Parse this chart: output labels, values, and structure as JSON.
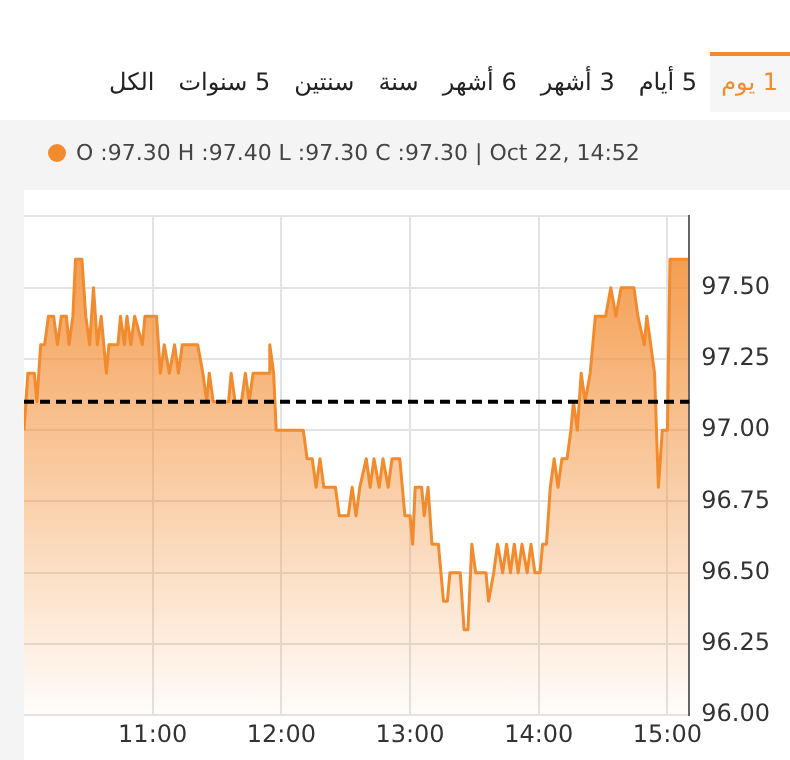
{
  "chart_data": {
    "type": "area",
    "annotations": [
      "1 يوم",
      "5 أيام",
      "3 أشهر",
      "6 أشهر",
      "سنة",
      "سنتين",
      "5 سنوات",
      "الكل",
      "O :97.30 H :97.40 L :97.30 C :97.30 | Oct 22, 14:52"
    ],
    "color": "#f28a2e",
    "marker": "none",
    "grid": true,
    "xlim": [
      10,
      15.17
    ],
    "ylim": [
      96,
      97.75
    ],
    "xticks": [
      {
        "value": 11,
        "label": "11:00"
      },
      {
        "value": 12,
        "label": "12:00"
      },
      {
        "value": 13,
        "label": "13:00"
      },
      {
        "value": 14,
        "label": "14:00"
      },
      {
        "value": 15,
        "label": "15:00"
      }
    ],
    "yticks": [
      {
        "value": 96,
        "label": "96.00"
      },
      {
        "value": 96.25,
        "label": "96.25"
      },
      {
        "value": 96.5,
        "label": "96.50"
      },
      {
        "value": 96.75,
        "label": "96.75"
      },
      {
        "value": 97,
        "label": "97.00"
      },
      {
        "value": 97.25,
        "label": "97.25"
      },
      {
        "value": 97.5,
        "label": "97.50"
      },
      {
        "value": 97.75,
        "label": null
      }
    ],
    "ref_lines": [
      {
        "axis": "y",
        "value": 97.1,
        "color": "#000000",
        "line_style": "dashed"
      }
    ],
    "x": [
      10.0,
      10.03,
      10.08,
      10.1,
      10.13,
      10.16,
      10.19,
      10.23,
      10.26,
      10.29,
      10.33,
      10.35,
      10.38,
      10.4,
      10.45,
      10.48,
      10.51,
      10.54,
      10.57,
      10.6,
      10.64,
      10.66,
      10.73,
      10.75,
      10.78,
      10.8,
      10.83,
      10.86,
      10.92,
      10.94,
      11.03,
      11.06,
      11.09,
      11.13,
      11.17,
      11.2,
      11.23,
      11.35,
      11.39,
      11.42,
      11.44,
      11.47,
      11.59,
      11.61,
      11.64,
      11.69,
      11.72,
      11.75,
      11.78,
      11.9,
      11.91,
      11.94,
      11.96,
      12.17,
      12.2,
      12.24,
      12.27,
      12.3,
      12.33,
      12.42,
      12.45,
      12.52,
      12.55,
      12.58,
      12.61,
      12.66,
      12.69,
      12.72,
      12.76,
      12.79,
      12.83,
      12.86,
      12.92,
      12.96,
      13.0,
      13.02,
      13.04,
      13.09,
      13.11,
      13.14,
      13.17,
      13.22,
      13.26,
      13.29,
      13.31,
      13.39,
      13.42,
      13.45,
      13.48,
      13.51,
      13.59,
      13.61,
      13.65,
      13.68,
      13.72,
      13.75,
      13.78,
      13.81,
      13.84,
      13.87,
      13.91,
      13.94,
      13.97,
      14.01,
      14.03,
      14.06,
      14.09,
      14.12,
      14.15,
      14.18,
      14.22,
      14.25,
      14.27,
      14.3,
      14.33,
      14.36,
      14.4,
      14.44,
      14.52,
      14.56,
      14.6,
      14.64,
      14.74,
      14.77,
      14.82,
      14.84,
      14.87,
      14.9,
      14.93,
      14.96,
      15.0,
      15.02,
      15.16
    ],
    "values": [
      97.0,
      97.2,
      97.2,
      97.1,
      97.3,
      97.3,
      97.4,
      97.4,
      97.3,
      97.4,
      97.4,
      97.3,
      97.4,
      97.6,
      97.6,
      97.4,
      97.3,
      97.5,
      97.3,
      97.4,
      97.2,
      97.3,
      97.3,
      97.4,
      97.3,
      97.4,
      97.3,
      97.4,
      97.3,
      97.4,
      97.4,
      97.2,
      97.3,
      97.2,
      97.3,
      97.2,
      97.3,
      97.3,
      97.2,
      97.1,
      97.2,
      97.1,
      97.1,
      97.2,
      97.1,
      97.1,
      97.2,
      97.1,
      97.2,
      97.2,
      97.3,
      97.2,
      97.0,
      97.0,
      96.9,
      96.9,
      96.8,
      96.9,
      96.8,
      96.8,
      96.7,
      96.7,
      96.8,
      96.7,
      96.8,
      96.9,
      96.8,
      96.9,
      96.8,
      96.9,
      96.8,
      96.9,
      96.9,
      96.7,
      96.7,
      96.6,
      96.8,
      96.8,
      96.7,
      96.8,
      96.6,
      96.6,
      96.4,
      96.4,
      96.5,
      96.5,
      96.3,
      96.3,
      96.6,
      96.5,
      96.5,
      96.4,
      96.5,
      96.6,
      96.5,
      96.6,
      96.5,
      96.6,
      96.5,
      96.6,
      96.5,
      96.6,
      96.5,
      96.5,
      96.6,
      96.6,
      96.8,
      96.9,
      96.8,
      96.9,
      96.9,
      97.0,
      97.1,
      97.0,
      97.2,
      97.1,
      97.2,
      97.4,
      97.4,
      97.5,
      97.4,
      97.5,
      97.5,
      97.4,
      97.3,
      97.4,
      97.3,
      97.2,
      96.8,
      97.0,
      97.0,
      97.6,
      97.6
    ]
  }
}
